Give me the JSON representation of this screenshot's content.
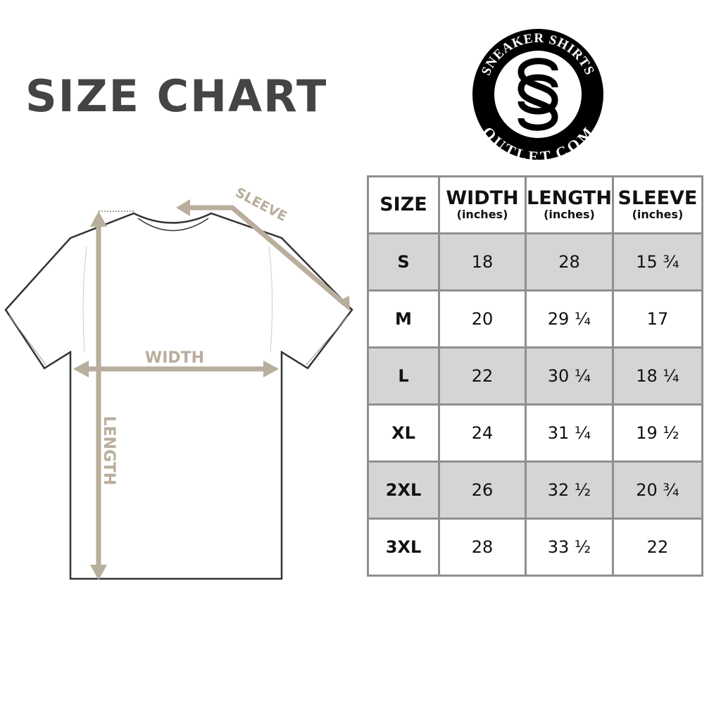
{
  "title": "SIZE CHART",
  "logo": {
    "top_text": "SNEAKER SHIRTS",
    "bottom_text": "OUTLET.COM",
    "monogram": "SS"
  },
  "diagram": {
    "sleeve_label": "SLEEVE",
    "width_label": "WIDTH",
    "length_label": "LENGTH",
    "arrow_color": "#b9ad9c"
  },
  "table": {
    "headers": [
      {
        "label": "SIZE",
        "unit": ""
      },
      {
        "label": "WIDTH",
        "unit": "(inches)"
      },
      {
        "label": "LENGTH",
        "unit": "(inches)"
      },
      {
        "label": "SLEEVE",
        "unit": "(inches)"
      }
    ],
    "rows": [
      [
        "S",
        "18",
        "28",
        "15 ¾"
      ],
      [
        "M",
        "20",
        "29 ¼",
        "17"
      ],
      [
        "L",
        "22",
        "30 ¼",
        "18 ¼"
      ],
      [
        "XL",
        "24",
        "31 ¼",
        "19 ½"
      ],
      [
        "2XL",
        "26",
        "32 ½",
        "20 ¾"
      ],
      [
        "3XL",
        "28",
        "33 ½",
        "22"
      ]
    ],
    "shade_color": "#d5d5d5"
  }
}
